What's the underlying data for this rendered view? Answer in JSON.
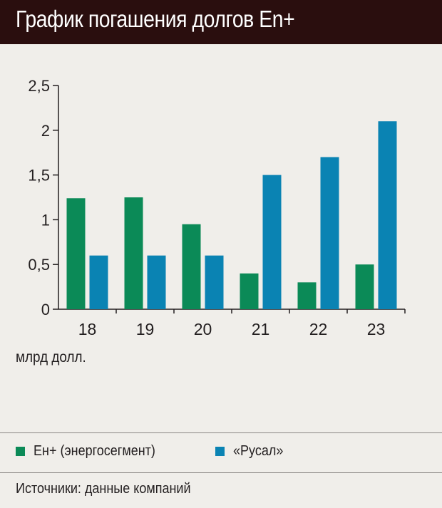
{
  "title": "График погашения долгов En+",
  "unit_label": "млрд долл.",
  "source": "Источники: данные компаний",
  "colors": {
    "energy": "#0b8a57",
    "rusal": "#0a83b3",
    "title_bg": "#2a0e0e",
    "background": "#f0eeea"
  },
  "legend": [
    {
      "label": "Ен+  (энергосегмент)",
      "color": "#0b8a57"
    },
    {
      "label": "«Русал»",
      "color": "#0a83b3"
    }
  ],
  "chart_data": {
    "type": "bar",
    "title": "График погашения долгов En+",
    "xlabel": "",
    "ylabel": "млрд долл.",
    "categories": [
      "18",
      "19",
      "20",
      "21",
      "22",
      "23"
    ],
    "series": [
      {
        "name": "Ен+  (энергосегмент)",
        "values": [
          1.24,
          1.25,
          0.95,
          0.4,
          0.3,
          0.5
        ]
      },
      {
        "name": "«Русал»",
        "values": [
          0.6,
          0.6,
          0.6,
          1.5,
          1.7,
          2.1
        ]
      }
    ],
    "y_ticks": [
      "0",
      "0,5",
      "1",
      "1,5",
      "2",
      "2,5"
    ],
    "ylim": [
      0,
      2.5
    ],
    "grid": false,
    "legend_position": "bottom"
  }
}
